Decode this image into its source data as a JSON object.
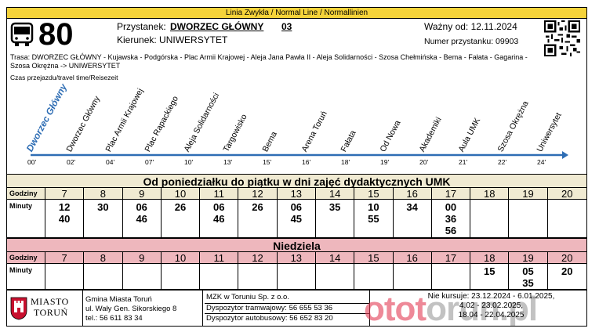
{
  "line_type": "Linia Zwykła  / Normal Line /  Normallinien",
  "line_number": "80",
  "stop": {
    "label": "Przystanek:",
    "name": "DWORZEC GŁÓWNY",
    "code": "03"
  },
  "direction": "Kierunek: UNIWERSYTET",
  "valid_from": "Ważny od: 12.11.2024",
  "stop_number": "Numer przystanku: 09903",
  "route": "Trasa: DWORZEC GŁÓWNY - Kujawska - Podgórska - Plac Armii Krajowej - Aleja Jana Pawła II - Aleja Solidarności - Szosa Chełmińska - Bema - Fałata - Gagarina - Szosa Okrężna -> UNIWERSYTET",
  "travel_time_label": "Czas przejazdu/travel time/Reisezeit",
  "stops": [
    {
      "name": "Dworzec Główny",
      "time": "00'"
    },
    {
      "name": "Dworzec Główny",
      "time": "02'"
    },
    {
      "name": "Plac Armii Krajowej",
      "time": "04'"
    },
    {
      "name": "Plac Rapackiego",
      "time": "07'"
    },
    {
      "name": "Aleja Solidarności",
      "time": "10'"
    },
    {
      "name": "Targowisko",
      "time": "13'"
    },
    {
      "name": "Bema",
      "time": "15'"
    },
    {
      "name": "Arena Toruń",
      "time": "16'"
    },
    {
      "name": "Fałata",
      "time": "18'"
    },
    {
      "name": "Od Nowa",
      "time": "19'"
    },
    {
      "name": "Akademiki",
      "time": "20'"
    },
    {
      "name": "Aula UMK",
      "time": "21'"
    },
    {
      "name": "Szosa Okrężna",
      "time": "22'"
    },
    {
      "name": "Uniwersytet",
      "time": "24'"
    }
  ],
  "weekday": {
    "title": "Od poniedziałku do piątku w dni zajęć dydaktycznych UMK",
    "hours_label": "Godziny",
    "minutes_label": "Minuty",
    "hours": [
      "7",
      "8",
      "9",
      "10",
      "11",
      "12",
      "13",
      "14",
      "15",
      "16",
      "17",
      "18",
      "19",
      "20"
    ],
    "minutes": [
      "12\n40",
      "30",
      "06\n46",
      "26",
      "06\n46",
      "26",
      "06\n45",
      "35",
      "10\n55",
      "34",
      "00\n36\n56",
      "",
      "",
      ""
    ]
  },
  "sunday": {
    "title": "Niedziela",
    "hours_label": "Godziny",
    "minutes_label": "Minuty",
    "hours": [
      "7",
      "8",
      "9",
      "10",
      "11",
      "12",
      "13",
      "14",
      "15",
      "16",
      "17",
      "18",
      "19",
      "20"
    ],
    "minutes": [
      "",
      "",
      "",
      "",
      "",
      "",
      "",
      "",
      "",
      "",
      "",
      "15",
      "05\n35",
      "20"
    ]
  },
  "footer": {
    "city_line1": "MIASTO",
    "city_line2": "TORUŃ",
    "office": [
      "Gmina Miasta Toruń",
      "ul. Wały Gen. Sikorskiego 8",
      "tel.: 56 611 83 34"
    ],
    "operator": [
      "MZK w Toruniu Sp. z o.o.",
      "Dyspozytor tramwajowy: 56 655 53 36",
      "Dyspozytor autobusowy: 56 652 83 20"
    ],
    "no_service": [
      "Nie kursuje: 23.12.2024 - 6.01.2025,",
      "4.02 - 23.02.2025,",
      "18.04 - 22.04.2025"
    ],
    "watermark_a": "otot",
    "watermark_b": "orun.pl"
  },
  "colors": {
    "header_bar": "#f5d33a",
    "weekday_bg": "#f0ead2",
    "sunday_bg": "#eeb7bd",
    "route_line": "#2e6db4"
  }
}
